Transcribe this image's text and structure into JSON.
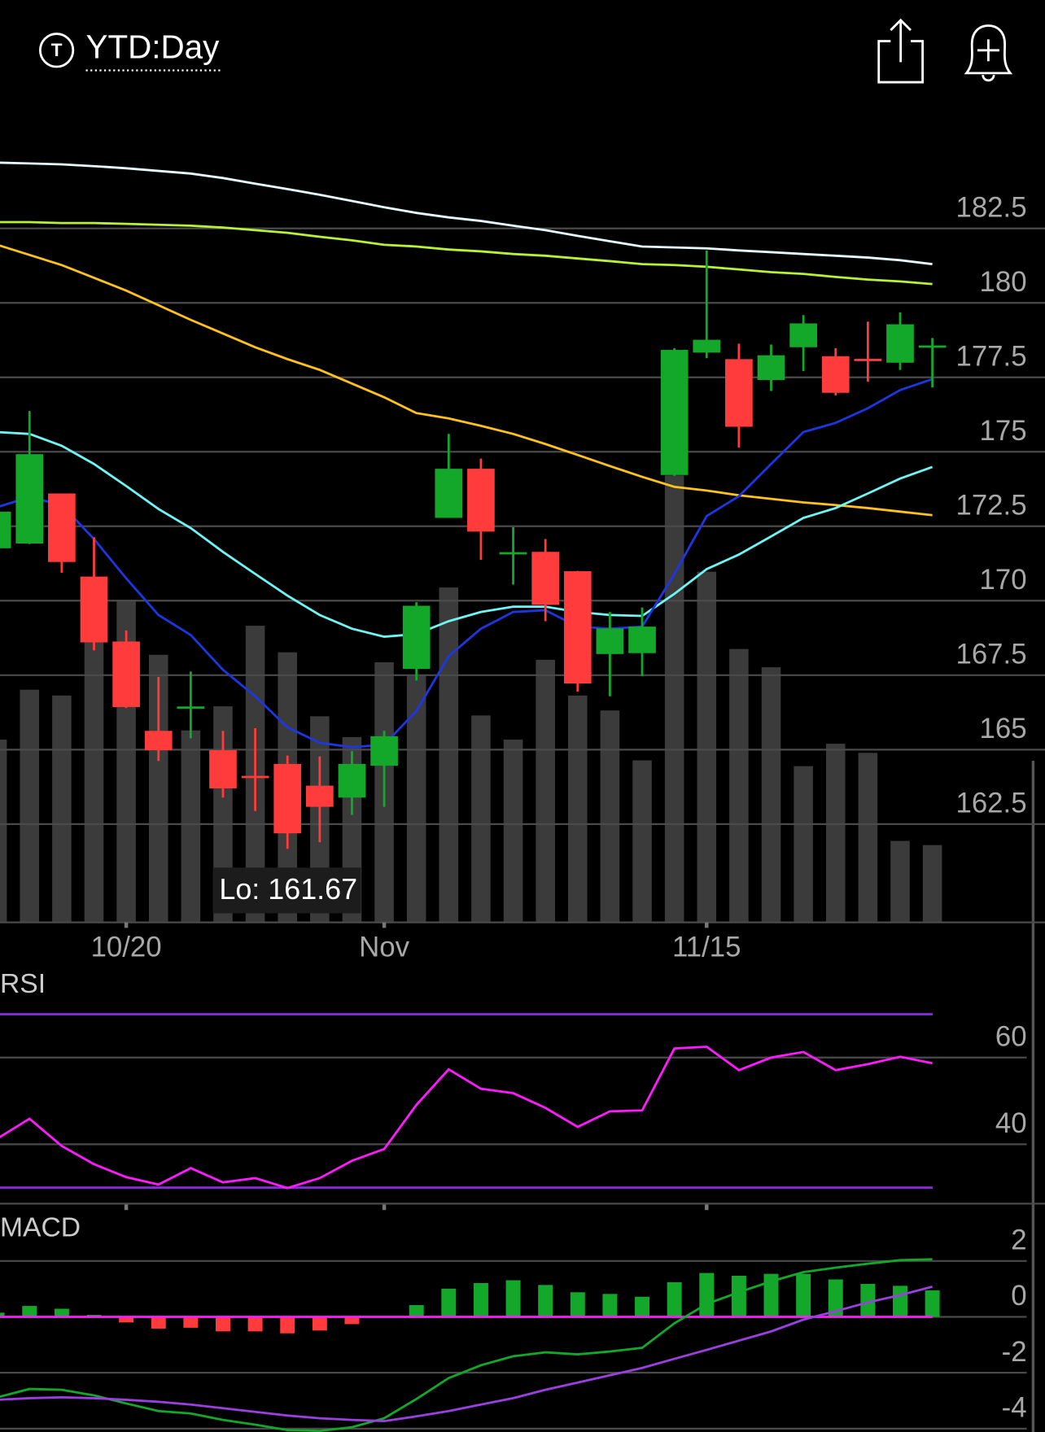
{
  "header": {
    "title": "YTD:Day"
  },
  "chart_data": [
    {
      "type": "candlestick",
      "categories": [
        null,
        null,
        null,
        null,
        "10/20",
        null,
        null,
        null,
        null,
        null,
        null,
        null,
        "Nov",
        null,
        null,
        null,
        null,
        null,
        null,
        null,
        null,
        null,
        "11/15",
        null,
        null,
        null,
        null,
        null,
        null,
        null
      ],
      "open": [
        171.76,
        171.92,
        173.6,
        170.81,
        168.63,
        165.63,
        166.4,
        164.98,
        164.12,
        164.52,
        163.79,
        163.39,
        164.46,
        167.71,
        172.78,
        174.43,
        171.6,
        171.64,
        170.99,
        168.21,
        168.24,
        174.22,
        178.33,
        178.11,
        177.41,
        178.51,
        178.21,
        178.12,
        177.99,
        178.55
      ],
      "high": [
        173.0,
        176.37,
        173.6,
        172.13,
        169.0,
        167.44,
        167.62,
        165.63,
        165.72,
        164.8,
        164.77,
        164.95,
        165.63,
        169.95,
        175.6,
        174.77,
        172.47,
        172.07,
        171.0,
        169.62,
        169.77,
        178.48,
        181.76,
        178.63,
        178.6,
        179.59,
        178.48,
        179.37,
        179.68,
        178.82
      ],
      "low": [
        171.7,
        171.9,
        170.94,
        168.33,
        166.4,
        164.62,
        165.38,
        163.39,
        162.94,
        161.67,
        161.89,
        162.81,
        163.08,
        167.32,
        172.78,
        171.37,
        170.54,
        169.31,
        166.95,
        166.79,
        167.47,
        174.19,
        178.14,
        175.14,
        177.04,
        177.71,
        176.89,
        177.35,
        177.75,
        177.16
      ],
      "close": [
        172.99,
        174.92,
        171.3,
        168.6,
        166.43,
        164.98,
        166.45,
        163.7,
        164.08,
        162.19,
        163.08,
        164.52,
        165.45,
        169.83,
        174.43,
        172.32,
        171.63,
        169.86,
        167.22,
        169.07,
        169.13,
        178.42,
        178.76,
        175.84,
        178.24,
        179.31,
        176.98,
        178.09,
        179.28,
        178.57
      ],
      "up_color": "#14a82a",
      "down_color": "#ff3b3b",
      "ylim": [
        159.2,
        187.1
      ],
      "yticks": [
        162.5,
        165,
        167.5,
        170,
        172.5,
        175,
        177.5,
        180,
        182.5
      ],
      "grid": true,
      "overlays": [
        {
          "color": "#e6fbff",
          "values": [
            184.71,
            184.68,
            184.65,
            184.59,
            184.52,
            184.43,
            184.34,
            184.19,
            184.0,
            183.82,
            183.63,
            183.42,
            183.21,
            183.02,
            182.87,
            182.75,
            182.59,
            182.44,
            182.25,
            182.07,
            181.89,
            181.86,
            181.83,
            181.76,
            181.7,
            181.64,
            181.58,
            181.52,
            181.43,
            181.3
          ]
        },
        {
          "color": "#b8f236",
          "values": [
            182.71,
            182.71,
            182.68,
            182.68,
            182.65,
            182.62,
            182.59,
            182.53,
            182.44,
            182.35,
            182.22,
            182.1,
            181.95,
            181.89,
            181.79,
            181.73,
            181.64,
            181.58,
            181.49,
            181.4,
            181.3,
            181.27,
            181.21,
            181.12,
            181.03,
            180.97,
            180.87,
            180.78,
            180.72,
            180.63
          ]
        },
        {
          "color": "#ffc21a",
          "values": [
            181.95,
            181.61,
            181.27,
            180.84,
            180.41,
            179.92,
            179.43,
            178.97,
            178.51,
            178.11,
            177.75,
            177.29,
            176.83,
            176.3,
            176.12,
            175.87,
            175.6,
            175.26,
            174.89,
            174.52,
            174.16,
            173.82,
            173.7,
            173.54,
            173.42,
            173.3,
            173.21,
            173.11,
            172.99,
            172.87
          ]
        },
        {
          "color": "#6ff4f4",
          "values": [
            175.66,
            175.6,
            175.2,
            174.59,
            173.85,
            173.08,
            172.44,
            171.64,
            170.9,
            170.17,
            169.52,
            169.06,
            168.79,
            168.88,
            169.31,
            169.62,
            169.8,
            169.8,
            169.62,
            169.52,
            169.49,
            170.23,
            171.06,
            171.55,
            172.16,
            172.78,
            173.11,
            173.6,
            174.1,
            174.49
          ]
        },
        {
          "color": "#1d36e0",
          "values": [
            173.14,
            173.48,
            173.21,
            172.07,
            170.75,
            169.52,
            168.85,
            167.68,
            166.79,
            165.75,
            165.23,
            165.08,
            165.17,
            166.3,
            168.14,
            169.06,
            169.62,
            169.68,
            169.13,
            169.06,
            169.13,
            170.9,
            172.84,
            173.51,
            174.59,
            175.66,
            175.97,
            176.46,
            177.07,
            177.44
          ]
        }
      ],
      "volume": {
        "color": "#3b3b3b",
        "lim": [
          0,
          100
        ],
        "values": [
          22.0,
          28.0,
          27.3,
          34.1,
          38.8,
          32.2,
          23.1,
          26.0,
          35.7,
          32.5,
          24.8,
          22.3,
          31.3,
          29.7,
          40.3,
          24.9,
          22.0,
          31.6,
          27.3,
          25.5,
          19.5,
          53.8,
          42.2,
          32.9,
          30.7,
          18.8,
          21.5,
          20.4,
          9.8,
          9.3
        ]
      },
      "annotation": "Lo: 161.67"
    },
    {
      "type": "line",
      "title": "RSI",
      "color": "#ff1aff",
      "values": [
        41.3,
        45.9,
        39.6,
        35.4,
        32.4,
        30.7,
        34.5,
        31.2,
        32.2,
        29.9,
        32.2,
        36.2,
        38.9,
        49.1,
        57.3,
        52.8,
        51.8,
        48.4,
        44.0,
        47.6,
        47.8,
        62.1,
        62.5,
        57.1,
        60.0,
        61.3,
        57.1,
        58.5,
        60.2,
        58.7
      ],
      "ylim": [
        26.3,
        79.6
      ],
      "yticks": [
        40,
        60
      ],
      "grid": true,
      "levels": [
        30,
        70
      ],
      "level_color": "#8a2be2"
    },
    {
      "type": "macd",
      "title": "MACD",
      "histogram": [
        0.15,
        0.39,
        0.29,
        0.07,
        -0.2,
        -0.42,
        -0.39,
        -0.52,
        -0.52,
        -0.59,
        -0.49,
        -0.26,
        0.02,
        0.42,
        1.01,
        1.21,
        1.31,
        1.14,
        0.88,
        0.82,
        0.72,
        1.24,
        1.57,
        1.47,
        1.54,
        1.54,
        1.34,
        1.18,
        1.11,
        0.95
      ],
      "up_color": "#14a82a",
      "down_color": "#ff3b3b",
      "zero_color": "#ff1aff",
      "series": [
        {
          "color": "#14a82a",
          "values": [
            -2.88,
            -2.58,
            -2.61,
            -2.81,
            -3.1,
            -3.37,
            -3.46,
            -3.69,
            -3.86,
            -4.05,
            -4.08,
            -3.95,
            -3.63,
            -2.94,
            -2.19,
            -1.73,
            -1.41,
            -1.27,
            -1.34,
            -1.24,
            -1.11,
            -0.23,
            0.46,
            0.88,
            1.27,
            1.6,
            1.76,
            1.9,
            2.03,
            2.06
          ]
        },
        {
          "color": "#9b3fe0",
          "values": [
            -2.97,
            -2.91,
            -2.88,
            -2.91,
            -2.97,
            -3.04,
            -3.14,
            -3.27,
            -3.4,
            -3.53,
            -3.63,
            -3.69,
            -3.73,
            -3.56,
            -3.37,
            -3.14,
            -2.91,
            -2.61,
            -2.35,
            -2.09,
            -1.83,
            -1.5,
            -1.18,
            -0.85,
            -0.52,
            -0.1,
            0.2,
            0.52,
            0.78,
            1.08
          ]
        }
      ],
      "ylim": [
        -4.12,
        3.66
      ],
      "yticks": [
        -4,
        -2,
        0,
        2
      ],
      "grid": true
    }
  ]
}
